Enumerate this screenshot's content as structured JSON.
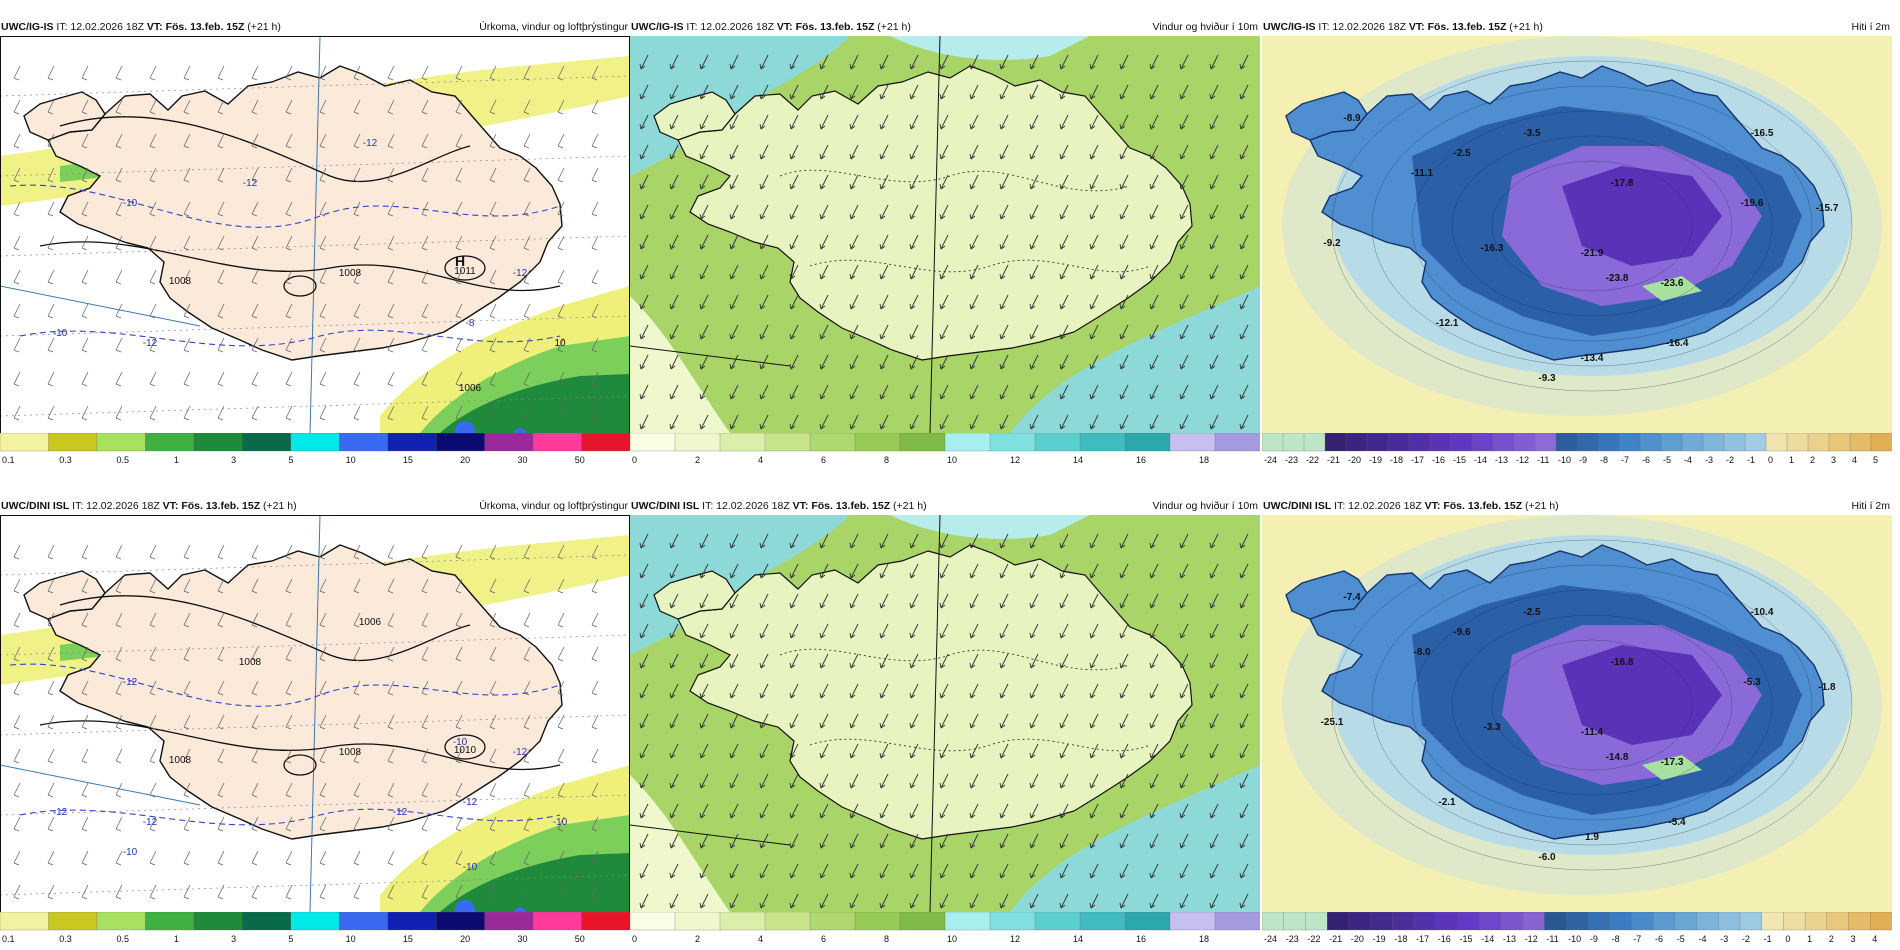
{
  "panels": [
    {
      "model": "UWC/IG-IS",
      "run": "IT: 12.02.2026 18Z",
      "vt_label": "VT:",
      "valid": "Fös. 13.feb. 15Z",
      "lead": "(+21 h)",
      "title": "Úrkoma, vindur og loftþrýstingur",
      "field": "precip",
      "labels": [
        "1011",
        "1008",
        "1008",
        "-12",
        "-12",
        "-12",
        "-10",
        "-10",
        "-12",
        "-8",
        "H",
        "10",
        "1006"
      ],
      "colorbar": {
        "ticks": [
          "0.1",
          "0.3",
          "0.5",
          "1",
          "3",
          "5",
          "10",
          "15",
          "20",
          "30",
          "50"
        ],
        "colors": [
          "#f2f2a0",
          "#c8c820",
          "#a8e060",
          "#40b040",
          "#1f8a3c",
          "#086a4a",
          "#00e8e8",
          "#3a6af0",
          "#1020b0",
          "#0a0a70",
          "#9a2a9a",
          "#ff3a9a",
          "#e8142a"
        ]
      }
    },
    {
      "model": "UWC/IG-IS",
      "run": "IT: 12.02.2026 18Z",
      "vt_label": "VT:",
      "valid": "Fös. 13.feb. 15Z",
      "lead": "(+21 h)",
      "title": "Vindur og hviður í 10m",
      "field": "wind",
      "labels": [],
      "colorbar": {
        "ticks": [
          "0",
          "2",
          "4",
          "6",
          "8",
          "10",
          "12",
          "14",
          "16",
          "18"
        ],
        "colors": [
          "#fbfde6",
          "#eef8cc",
          "#dcefaa",
          "#c8e58a",
          "#b0d870",
          "#98ca58",
          "#7fbb46",
          "#a8f0f0",
          "#80e0e0",
          "#5acfd0",
          "#40bcc0",
          "#2aa8ac",
          "#c6c0f0",
          "#a49ae0"
        ]
      }
    },
    {
      "model": "UWC/IG-IS",
      "run": "IT: 12.02.2026 18Z",
      "vt_label": "VT:",
      "valid": "Fös. 13.feb. 15Z",
      "lead": "(+21 h)",
      "title": "Hiti í 2m",
      "field": "temp",
      "labels": [
        "-8.9",
        "-11.1",
        "-2.5",
        "-3.5",
        "-17.8",
        "-16.5",
        "-19.6",
        "-15.7",
        "-9.2",
        "-16.3",
        "-21.9",
        "-23.8",
        "-23.6",
        "-12.1",
        "-16.4",
        "-13.4",
        "-9.3"
      ],
      "colorbar": {
        "ticks": [
          "-24",
          "-23",
          "-22",
          "-21",
          "-20",
          "-19",
          "-18",
          "-17",
          "-16",
          "-15",
          "-14",
          "-13",
          "-12",
          "-11",
          "-10",
          "-9",
          "-8",
          "-7",
          "-6",
          "-5",
          "-4",
          "-3",
          "-2",
          "-1",
          "0",
          "1",
          "2",
          "3",
          "4",
          "5"
        ],
        "colors": []
      }
    },
    {
      "model": "UWC/DINI ISL",
      "run": "IT: 12.02.2026 18Z",
      "vt_label": "VT:",
      "valid": "Fös. 13.feb. 15Z",
      "lead": "(+21 h)",
      "title": "Úrkoma, vindur og loftþrýstingur",
      "field": "precip",
      "labels": [
        "1010",
        "1008",
        "1008",
        "1008",
        "1006",
        "-12",
        "-12",
        "-12",
        "-12",
        "-12",
        "-10",
        "-10",
        "-10",
        "-12",
        "-10"
      ],
      "colorbar": {
        "ticks": [
          "0.1",
          "0.3",
          "0.5",
          "1",
          "3",
          "5",
          "10",
          "15",
          "20",
          "30",
          "50"
        ],
        "colors": [
          "#f2f2a0",
          "#c8c820",
          "#a8e060",
          "#40b040",
          "#1f8a3c",
          "#086a4a",
          "#00e8e8",
          "#3a6af0",
          "#1020b0",
          "#0a0a70",
          "#9a2a9a",
          "#ff3a9a",
          "#e8142a"
        ]
      }
    },
    {
      "model": "UWC/DINI ISL",
      "run": "IT: 12.02.2026 18Z",
      "vt_label": "VT:",
      "valid": "Fös. 13.feb. 15Z",
      "lead": "(+21 h)",
      "title": "Vindur og hviður í 10m",
      "field": "wind",
      "labels": [],
      "colorbar": {
        "ticks": [
          "0",
          "2",
          "4",
          "6",
          "8",
          "10",
          "12",
          "14",
          "16",
          "18"
        ],
        "colors": [
          "#fbfde6",
          "#eef8cc",
          "#dcefaa",
          "#c8e58a",
          "#b0d870",
          "#98ca58",
          "#7fbb46",
          "#a8f0f0",
          "#80e0e0",
          "#5acfd0",
          "#40bcc0",
          "#2aa8ac",
          "#c6c0f0",
          "#a49ae0"
        ]
      }
    },
    {
      "model": "UWC/DINI ISL",
      "run": "IT: 12.02.2026 18Z",
      "vt_label": "VT:",
      "valid": "Fös. 13.feb. 15Z",
      "lead": "(+21 h)",
      "title": "Hiti í 2m",
      "field": "temp",
      "labels": [
        "-7.4",
        "-8.0",
        "-9.6",
        "-2.5",
        "-16.8",
        "-10.4",
        "-5.3",
        "-1.8",
        "-25.1",
        "-3.3",
        "-11.4",
        "-14.8",
        "-17.3",
        "-2.1",
        "-5.4",
        "1.9",
        "-6.0"
      ],
      "colorbar": {
        "ticks": [
          "-24",
          "-23",
          "-22",
          "-21",
          "-20",
          "-19",
          "-18",
          "-17",
          "-16",
          "-15",
          "-14",
          "-13",
          "-12",
          "-11",
          "-10",
          "-9",
          "-8",
          "-7",
          "-6",
          "-5",
          "-4",
          "-3",
          "-2",
          "-1",
          "0",
          "1",
          "2",
          "3",
          "4"
        ],
        "colors": []
      }
    }
  ]
}
